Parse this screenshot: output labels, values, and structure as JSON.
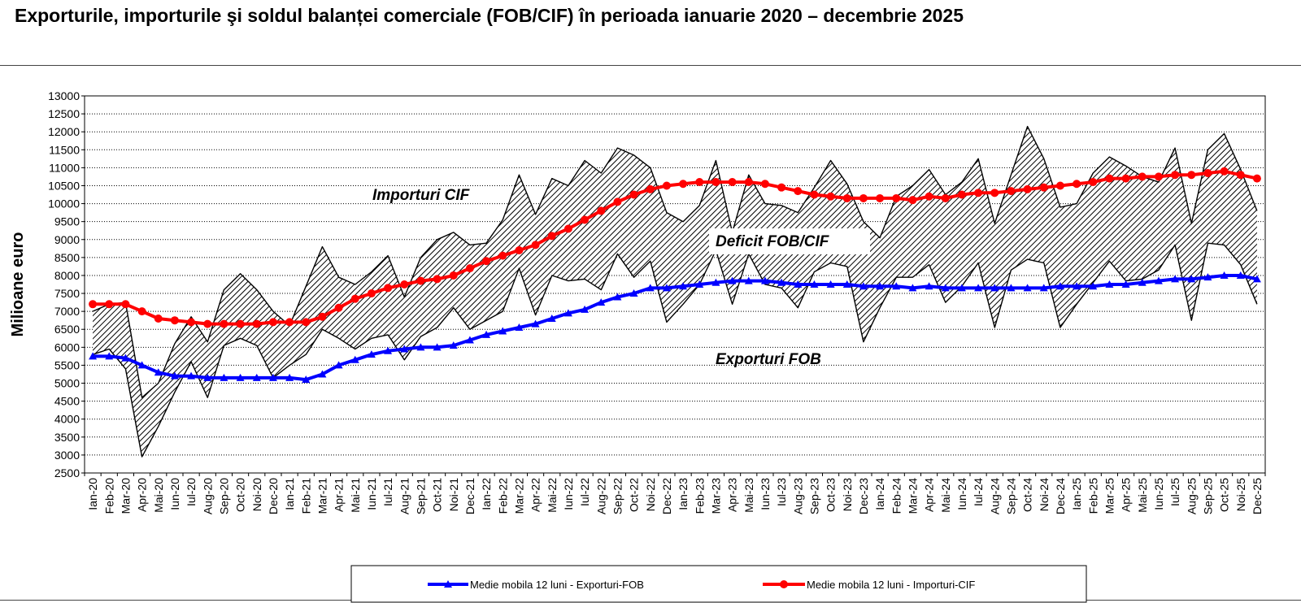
{
  "title": "Exporturile, importurile şi soldul balanței comerciale (FOB/CIF) în perioada ianuarie 2020 – decembrie 2025",
  "colors": {
    "export": "#0000ff",
    "import": "#ff0000",
    "hatch": "#000000",
    "plot_bg": "#ffffff"
  },
  "chart_data": {
    "type": "line",
    "ylabel": "Milioane  euro",
    "xlabel": "",
    "ylim": [
      2500,
      13000
    ],
    "yticks": [
      2500,
      3000,
      3500,
      4000,
      4500,
      5000,
      5500,
      6000,
      6500,
      7000,
      7500,
      8000,
      8500,
      9000,
      9500,
      10000,
      10500,
      11000,
      11500,
      12000,
      12500,
      13000
    ],
    "grid": true,
    "categories": [
      "Ian-20",
      "Feb-20",
      "Mar-20",
      "Apr-20",
      "Mai-20",
      "Iun-20",
      "Iul-20",
      "Aug-20",
      "Sep-20",
      "Oct-20",
      "Noi-20",
      "Dec-20",
      "Ian-21",
      "Feb-21",
      "Mar-21",
      "Apr-21",
      "Mai-21",
      "Iun-21",
      "Iul-21",
      "Aug-21",
      "Sep-21",
      "Oct-21",
      "Noi-21",
      "Dec-21",
      "Ian-22",
      "Feb-22",
      "Mar-22",
      "Apr-22",
      "Mai-22",
      "Iun-22",
      "Iul-22",
      "Aug-22",
      "Sep-22",
      "Oct-22",
      "Noi-22",
      "Dec-22",
      "Ian-23",
      "Feb-23",
      "Mar-23",
      "Apr-23",
      "Mai-23",
      "Iun-23",
      "Iul-23",
      "Aug-23",
      "Sep-23",
      "Oct-23",
      "Noi-23",
      "Dec-23",
      "Ian-24",
      "Feb-24",
      "Mar-24",
      "Apr-24",
      "Mai-24",
      "Iun-24",
      "Iul-24",
      "Aug-24",
      "Sep-24",
      "Oct-24",
      "Noi-24",
      "Dec-24",
      "Ian-25",
      "Feb-25",
      "Mar-25",
      "Apr-25",
      "Mai-25",
      "Iun-25",
      "Iul-25",
      "Aug-25",
      "Sep-25",
      "Oct-25",
      "Noi-25",
      "Dec-25"
    ],
    "series": [
      {
        "name": "Importuri CIF",
        "role": "monthly-import",
        "values": [
          7000,
          7200,
          7250,
          4600,
          5000,
          6100,
          6850,
          6150,
          7600,
          8050,
          7600,
          7000,
          6600,
          7700,
          8800,
          7950,
          7750,
          8100,
          8550,
          7400,
          8500,
          9000,
          9200,
          8850,
          8900,
          9550,
          10800,
          9700,
          10700,
          10500,
          11200,
          10850,
          11550,
          11350,
          11000,
          9750,
          9500,
          9950,
          11200,
          9200,
          10800,
          10000,
          9950,
          9750,
          10450,
          11200,
          10550,
          9500,
          9050,
          10200,
          10500,
          10950,
          10250,
          10600,
          11250,
          9450,
          10800,
          12150,
          11250,
          9900,
          10000,
          10850,
          11300,
          11050,
          10750,
          10600,
          11550,
          9450,
          11500,
          11950,
          10950,
          9800
        ]
      },
      {
        "name": "Exporturi FOB",
        "role": "monthly-export",
        "values": [
          5800,
          5950,
          5400,
          2950,
          3800,
          4750,
          5600,
          4600,
          6050,
          6250,
          6050,
          5150,
          5500,
          5800,
          6500,
          6250,
          5950,
          6250,
          6350,
          5650,
          6300,
          6550,
          7100,
          6500,
          6750,
          7000,
          8200,
          6900,
          8000,
          7850,
          7900,
          7600,
          8600,
          7950,
          8400,
          6700,
          7200,
          7750,
          8700,
          7200,
          8600,
          7750,
          7650,
          7100,
          8100,
          8350,
          8250,
          6150,
          7100,
          7950,
          7950,
          8300,
          7250,
          7700,
          8350,
          6550,
          8150,
          8450,
          8350,
          6550,
          7200,
          7800,
          8400,
          7850,
          7900,
          8150,
          8850,
          6750,
          8900,
          8850,
          8300,
          7200
        ]
      },
      {
        "name": "Medie mobila 12 luni - Exporturi-FOB",
        "role": "ma-export",
        "values": [
          5750,
          5750,
          5700,
          5500,
          5300,
          5200,
          5200,
          5150,
          5150,
          5150,
          5150,
          5150,
          5150,
          5100,
          5250,
          5500,
          5650,
          5800,
          5900,
          5950,
          6000,
          6000,
          6050,
          6200,
          6350,
          6450,
          6550,
          6650,
          6800,
          6950,
          7050,
          7250,
          7400,
          7500,
          7650,
          7650,
          7700,
          7750,
          7800,
          7850,
          7850,
          7850,
          7800,
          7750,
          7750,
          7750,
          7750,
          7700,
          7700,
          7700,
          7650,
          7700,
          7650,
          7650,
          7650,
          7650,
          7650,
          7650,
          7650,
          7700,
          7700,
          7700,
          7750,
          7750,
          7800,
          7850,
          7900,
          7900,
          7950,
          8000,
          8000,
          7900
        ]
      },
      {
        "name": "Medie mobila 12 luni - Importuri-CIF",
        "role": "ma-import",
        "values": [
          7200,
          7200,
          7200,
          7000,
          6800,
          6750,
          6700,
          6650,
          6650,
          6650,
          6650,
          6700,
          6700,
          6700,
          6850,
          7100,
          7350,
          7500,
          7650,
          7750,
          7850,
          7900,
          8000,
          8200,
          8400,
          8550,
          8700,
          8850,
          9100,
          9300,
          9550,
          9800,
          10050,
          10250,
          10400,
          10500,
          10550,
          10600,
          10600,
          10600,
          10600,
          10550,
          10450,
          10350,
          10250,
          10200,
          10150,
          10150,
          10150,
          10150,
          10100,
          10200,
          10150,
          10250,
          10300,
          10300,
          10350,
          10400,
          10450,
          10500,
          10550,
          10600,
          10700,
          10700,
          10750,
          10750,
          10800,
          10800,
          10850,
          10900,
          10800,
          10700
        ]
      }
    ],
    "annotations": [
      "Importuri CIF",
      "Deficit FOB/CIF",
      "Exporturi FOB"
    ],
    "legend": {
      "position": "bottom-center",
      "items": [
        "Medie mobila 12 luni - Exporturi-FOB",
        "Medie mobila 12 luni - Importuri-CIF"
      ]
    }
  }
}
